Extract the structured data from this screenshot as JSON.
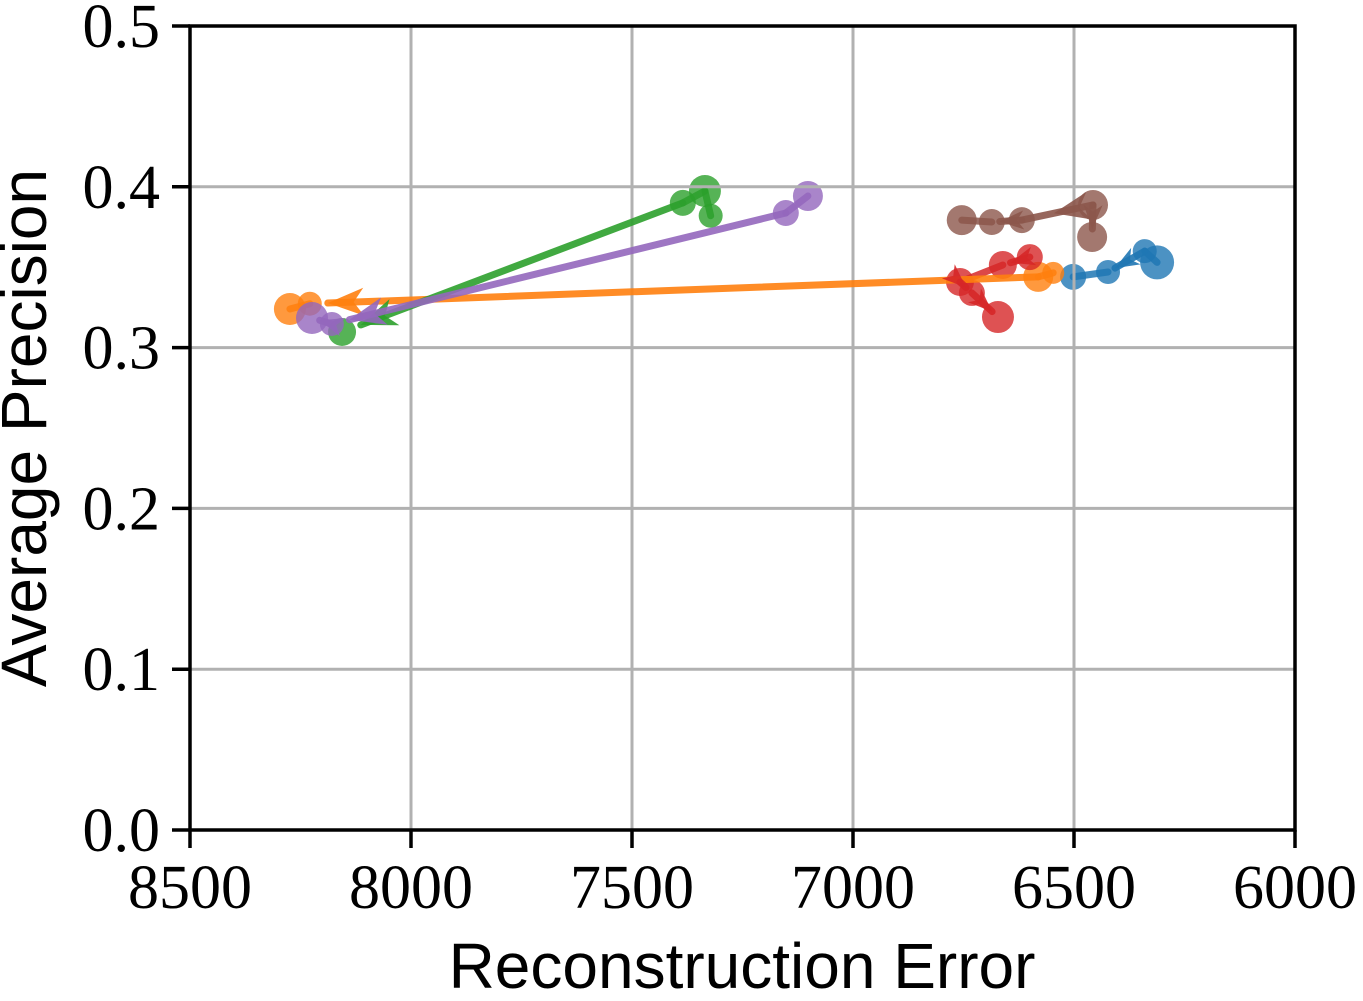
{
  "chart_data": {
    "type": "scatter",
    "title": "",
    "xlabel": "Reconstruction Error",
    "ylabel": "Average Precision",
    "xlim": [
      8500,
      6000
    ],
    "ylim": [
      0.0,
      0.5
    ],
    "x_axis_reversed": true,
    "grid": true,
    "legend": false,
    "grid_color": "#b1b1b1",
    "spine_color": "#000000",
    "x_ticks": [
      8500,
      8000,
      7500,
      7000,
      6500,
      6000
    ],
    "x_tick_labels": [
      "8500",
      "8000",
      "7500",
      "7000",
      "6500",
      "6000"
    ],
    "y_ticks": [
      0.0,
      0.1,
      0.2,
      0.3,
      0.4,
      0.5
    ],
    "y_tick_labels": [
      "0.0",
      "0.1",
      "0.2",
      "0.3",
      "0.4",
      "0.5"
    ],
    "series": [
      {
        "name": "blue",
        "color": "#1f77b4",
        "points": [
          {
            "x": 6312,
            "y": 0.353,
            "r": 17
          },
          {
            "x": 6340,
            "y": 0.36,
            "r": 12
          },
          {
            "x": 6423,
            "y": 0.347,
            "r": 12
          },
          {
            "x": 6502,
            "y": 0.344,
            "r": 13
          }
        ],
        "segments": [
          {
            "from": 0,
            "to": 1
          },
          {
            "from": 1,
            "to": 2,
            "arrow": "small"
          },
          {
            "from": 2,
            "to": 3
          }
        ]
      },
      {
        "name": "orange",
        "color": "#ff7f0e",
        "points": [
          {
            "x": 6547,
            "y": 0.3465,
            "r": 11
          },
          {
            "x": 6581,
            "y": 0.344,
            "r": 15
          },
          {
            "x": 8229,
            "y": 0.3273,
            "r": 12
          },
          {
            "x": 8274,
            "y": 0.324,
            "r": 16
          }
        ],
        "segments": [
          {
            "from": 0,
            "to": 1
          },
          {
            "from": 1,
            "to": 2,
            "arrow": "big",
            "edge": true
          },
          {
            "from": 2,
            "to": 3
          }
        ]
      },
      {
        "name": "green",
        "color": "#2ca02c",
        "points": [
          {
            "x": 7322,
            "y": 0.382,
            "r": 12
          },
          {
            "x": 7335,
            "y": 0.3974,
            "r": 16
          },
          {
            "x": 7385,
            "y": 0.39,
            "r": 13
          },
          {
            "x": 8156,
            "y": 0.3097,
            "r": 14
          }
        ],
        "segments": [
          {
            "from": 0,
            "to": 1
          },
          {
            "from": 1,
            "to": 2
          },
          {
            "from": 2,
            "to": 3,
            "arrow": "big",
            "edge": true
          }
        ]
      },
      {
        "name": "red",
        "color": "#d62728",
        "points": [
          {
            "x": 6600,
            "y": 0.3563,
            "r": 13
          },
          {
            "x": 6661,
            "y": 0.3514,
            "r": 14
          },
          {
            "x": 6758,
            "y": 0.3408,
            "r": 14
          },
          {
            "x": 6731,
            "y": 0.334,
            "r": 13
          },
          {
            "x": 6672,
            "y": 0.319,
            "r": 16
          }
        ],
        "segments": [
          {
            "from": 0,
            "to": 1,
            "arrow": "small"
          },
          {
            "from": 1,
            "to": 2
          },
          {
            "from": 2,
            "to": 3,
            "arrow": "small"
          },
          {
            "from": 3,
            "to": 4,
            "arrow": "small"
          }
        ]
      },
      {
        "name": "purple",
        "color": "#9467bd",
        "points": [
          {
            "x": 7102,
            "y": 0.3943,
            "r": 15
          },
          {
            "x": 7152,
            "y": 0.3837,
            "r": 13
          },
          {
            "x": 8179,
            "y": 0.3147,
            "r": 12
          },
          {
            "x": 8224,
            "y": 0.3184,
            "r": 16
          }
        ],
        "segments": [
          {
            "from": 0,
            "to": 1
          },
          {
            "from": 1,
            "to": 2,
            "arrow": "big",
            "edge": true
          },
          {
            "from": 2,
            "to": 3,
            "arrow": "small"
          }
        ]
      },
      {
        "name": "brown",
        "color": "#8c564b",
        "points": [
          {
            "x": 6457,
            "y": 0.3887,
            "r": 15
          },
          {
            "x": 6459,
            "y": 0.3688,
            "r": 15
          },
          {
            "x": 6618,
            "y": 0.3793,
            "r": 13
          },
          {
            "x": 6686,
            "y": 0.3781,
            "r": 13
          },
          {
            "x": 6754,
            "y": 0.3793,
            "r": 15
          }
        ],
        "segments": [
          {
            "from": 0,
            "to": 1,
            "arrow": "small"
          },
          {
            "from": 0,
            "to": 2,
            "arrow": "big",
            "at": 0.55
          },
          {
            "from": 2,
            "to": 3,
            "arrow": "small"
          },
          {
            "from": 3,
            "to": 4
          }
        ]
      }
    ]
  }
}
